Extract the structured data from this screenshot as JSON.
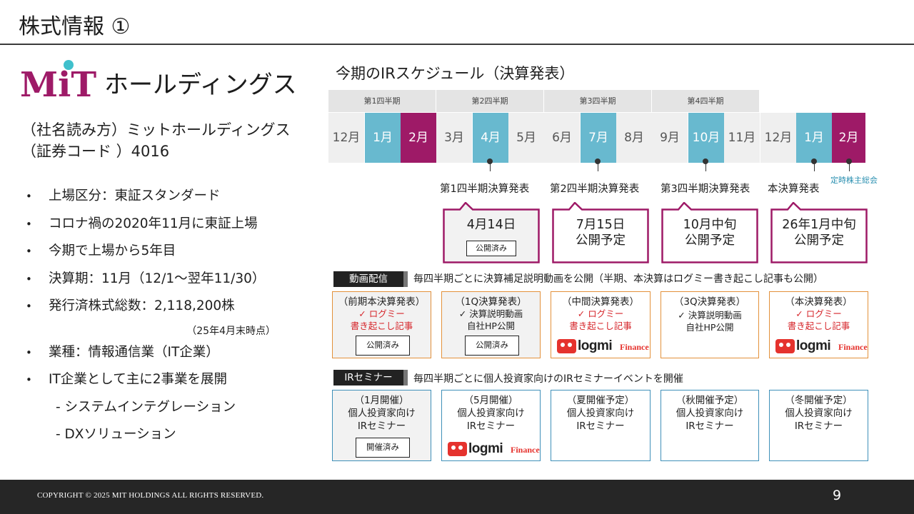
{
  "slide": {
    "title": "株式情報 ①",
    "page_number": "9"
  },
  "logo": {
    "brand": "MiT",
    "text": "ホールディングス"
  },
  "company": {
    "reading": "（社名読み方）ミットホールディングス",
    "code": "（証券コード ）4016"
  },
  "bullets": [
    "上場区分：東証スタンダード",
    "コロナ禍の2020年11月に東証上場",
    "今期で上場から5年目",
    "決算期：11月（12/1～翌年11/30）",
    "発行済株式総数：2,118,200株"
  ],
  "shares_note": "（25年4月末時点）",
  "bullets2": [
    "業種：情報通信業（IT企業）",
    "IT企業として主に2事業を展開"
  ],
  "sub_bullets": [
    "- システムインテグレーション",
    "- DXソリューション"
  ],
  "schedule": {
    "title": "今期のIRスケジュール（決算発表）",
    "quarters": [
      "第1四半期",
      "第2四半期",
      "第3四半期",
      "第4四半期"
    ],
    "months": [
      "12月",
      "1月",
      "2月",
      "3月",
      "4月",
      "5月",
      "6月",
      "7月",
      "8月",
      "9月",
      "10月",
      "11月",
      "12月",
      "1月",
      "2月"
    ],
    "highlight_colors": {
      "blue": "#68b9cf",
      "purple": "#9e1a67"
    },
    "announcements": [
      "第1四半期決算発表",
      "第2四半期決算発表",
      "第3四半期決算発表",
      "本決算発表"
    ],
    "agm": "定時株主総会",
    "bubbles": [
      {
        "line1": "4月14日",
        "badge": "公開済み"
      },
      {
        "line1": "7月15日",
        "line2": "公開予定"
      },
      {
        "line1": "10月中旬",
        "line2": "公開予定"
      },
      {
        "line1": "26年1月中旬",
        "line2": "公開予定"
      }
    ]
  },
  "video": {
    "tag": "動画配信",
    "description": "毎四半期ごとに決算補足説明動画を公開（半期、本決算はログミー書き起こし記事も公開）",
    "cards": [
      {
        "title": "（前期本決算発表）",
        "line1": "✓ ログミー",
        "line2": "書き起こし記事",
        "badge": "公開済み"
      },
      {
        "title": "（1Q決算発表）",
        "line1": "✓ 決算説明動画",
        "line2": "自社HP公開",
        "badge": "公開済み"
      },
      {
        "title": "（中間決算発表）",
        "line1": "✓ ログミー",
        "line2": "書き起こし記事"
      },
      {
        "title": "（3Q決算発表）",
        "line1": "✓ 決算説明動画",
        "line2": "自社HP公開"
      },
      {
        "title": "（本決算発表）",
        "line1": "✓ ログミー",
        "line2": "書き起こし記事"
      }
    ]
  },
  "seminar": {
    "tag": "IRセミナー",
    "description": "毎四半期ごとに個人投資家向けのIRセミナーイベントを開催",
    "cards": [
      {
        "title": "（1月開催）",
        "line1": "個人投資家向け",
        "line2": "IRセミナー",
        "badge": "開催済み"
      },
      {
        "title": "（5月開催）",
        "line1": "個人投資家向け",
        "line2": "IRセミナー"
      },
      {
        "title": "（夏開催予定）",
        "line1": "個人投資家向け",
        "line2": "IRセミナー"
      },
      {
        "title": "（秋開催予定）",
        "line1": "個人投資家向け",
        "line2": "IRセミナー"
      },
      {
        "title": "（冬開催予定）",
        "line1": "個人投資家向け",
        "line2": "IRセミナー"
      }
    ]
  },
  "logmi": {
    "word": "logmi",
    "finance": "Finance"
  },
  "footer": {
    "copyright": "COPYRIGHT © 2025 MIT HOLDINGS ALL RIGHTS RESERVED."
  }
}
